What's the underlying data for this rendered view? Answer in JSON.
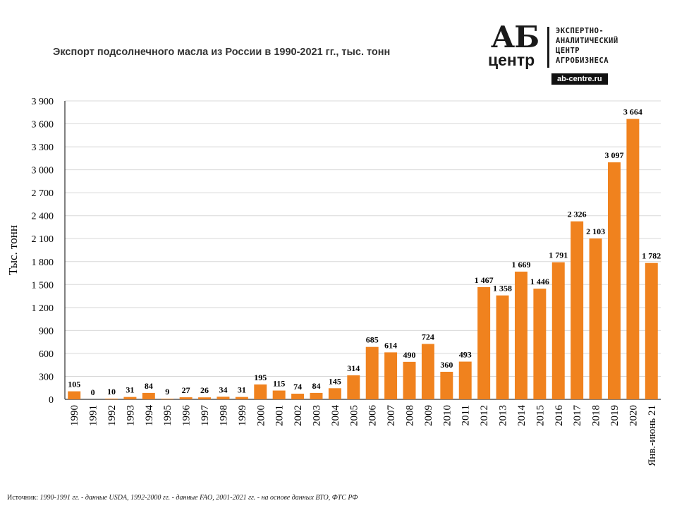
{
  "header": {
    "title": "Экспорт подсолнечного масла из России в 1990-2021 гг., тыс. тонн"
  },
  "logo": {
    "mark_top": "АБ",
    "mark_bottom": "центр",
    "lines": [
      "ЭКСПЕРТНО-",
      "АНАЛИТИЧЕСКИЙ",
      "ЦЕНТР",
      "АГРОБИЗНЕСА"
    ],
    "site": "ab-centre.ru"
  },
  "footer": {
    "source_label": "Источник:",
    "source_text": "1990-1991 гг. - данные USDA, 1992-2000 гг. - данные FAO, 2001-2021 гг. - на основе данных ВТО, ФТС РФ"
  },
  "colors": {
    "bar": "#f0821e",
    "gridline": "#d9d9d9",
    "axis": "#000000",
    "text": "#000000"
  },
  "chart_data": {
    "type": "bar",
    "title": "Экспорт подсолнечного масла из России в 1990-2021 гг., тыс. тонн",
    "xlabel": "",
    "ylabel": "Тыс. тонн",
    "ylim": [
      0,
      3900
    ],
    "ytick_step": 300,
    "ytick_labels": [
      "0",
      "300",
      "600",
      "900",
      "1 200",
      "1 500",
      "1 800",
      "2 100",
      "2 400",
      "2 700",
      "3 000",
      "3 300",
      "3 600",
      "3 900"
    ],
    "grid": true,
    "categories": [
      "1990",
      "1991",
      "1992",
      "1993",
      "1994",
      "1995",
      "1996",
      "1997",
      "1998",
      "1999",
      "2000",
      "2001",
      "2002",
      "2003",
      "2004",
      "2005",
      "2006",
      "2007",
      "2008",
      "2009",
      "2010",
      "2011",
      "2012",
      "2013",
      "2014",
      "2015",
      "2016",
      "2017",
      "2018",
      "2019",
      "2020",
      "Янв.-июнь 21"
    ],
    "values": [
      105,
      0,
      10,
      31,
      84,
      9,
      27,
      26,
      34,
      31,
      195,
      115,
      74,
      84,
      145,
      314,
      685,
      614,
      490,
      724,
      360,
      493,
      1467,
      1358,
      1669,
      1446,
      1791,
      2326,
      2103,
      3097,
      3664,
      1782
    ],
    "value_labels": [
      "105",
      "0",
      "10",
      "31",
      "84",
      "9",
      "27",
      "26",
      "34",
      "31",
      "195",
      "115",
      "74",
      "84",
      "145",
      "314",
      "685",
      "614",
      "490",
      "724",
      "360",
      "493",
      "1 467",
      "1 358",
      "1 669",
      "1 446",
      "1 791",
      "2 326",
      "2 103",
      "3 097",
      "3 664",
      "1 782"
    ]
  }
}
